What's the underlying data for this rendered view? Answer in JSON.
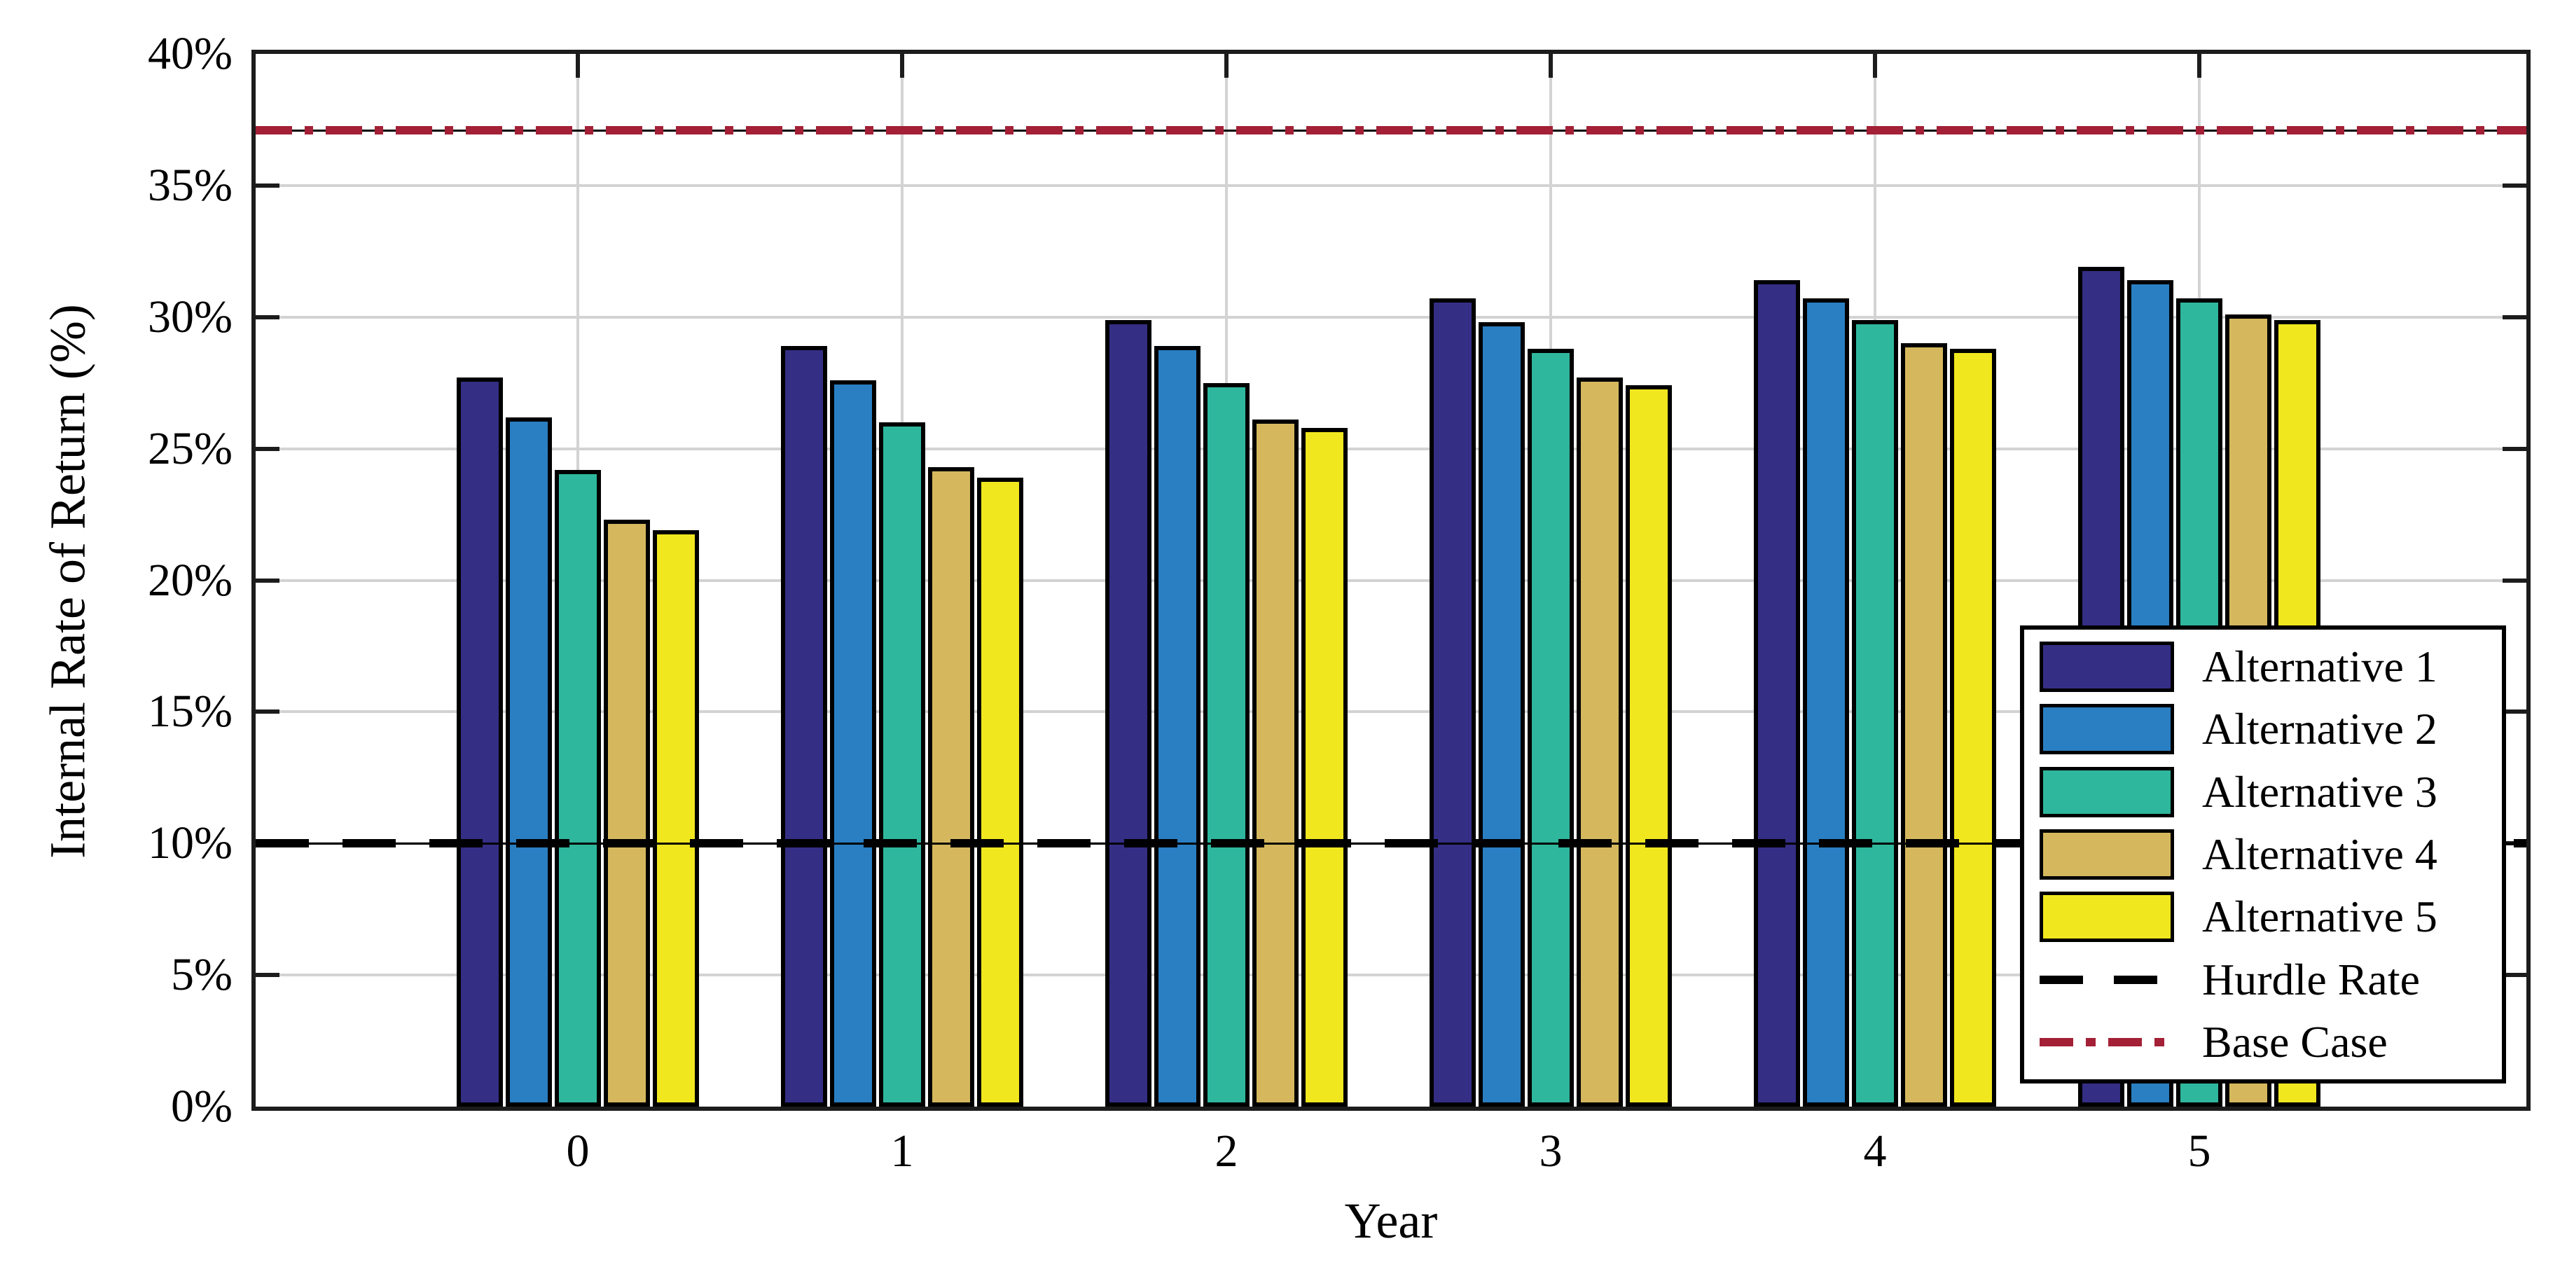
{
  "figure": {
    "background": "#ffffff"
  },
  "axes": {
    "y_title": "Internal Rate of Return (%)",
    "x_title": "Year",
    "y_ticks": [
      {
        "label": "40%",
        "value": 40
      },
      {
        "label": "35%",
        "value": 35
      },
      {
        "label": "30%",
        "value": 30
      },
      {
        "label": "25%",
        "value": 25
      },
      {
        "label": "20%",
        "value": 20
      },
      {
        "label": "15%",
        "value": 15
      },
      {
        "label": "10%",
        "value": 10
      },
      {
        "label": "5%",
        "value": 5
      },
      {
        "label": "0%",
        "value": 0
      }
    ],
    "x_ticks": [
      "0",
      "1",
      "2",
      "3",
      "4",
      "5"
    ],
    "grid_color": "#d3d3d3",
    "spine_color": "#1c1c1c"
  },
  "chart_data": {
    "type": "bar",
    "title": "",
    "xlabel": "Year",
    "ylabel": "Internal Rate of Return (%)",
    "categories": [
      0,
      1,
      2,
      3,
      4,
      5
    ],
    "ylim": [
      0,
      40
    ],
    "grid": true,
    "legend_position": "lower-right-inside",
    "series": [
      {
        "name": "Alternative 1",
        "color": "#352e85",
        "values": [
          27.7,
          28.9,
          29.9,
          30.7,
          31.4,
          31.9
        ]
      },
      {
        "name": "Alternative 2",
        "color": "#2a7fc2",
        "values": [
          26.2,
          27.6,
          28.9,
          29.8,
          30.7,
          31.4
        ]
      },
      {
        "name": "Alternative 3",
        "color": "#2fb79d",
        "values": [
          24.2,
          26.0,
          27.5,
          28.8,
          29.9,
          30.7
        ]
      },
      {
        "name": "Alternative 4",
        "color": "#d5b85e",
        "values": [
          22.3,
          24.3,
          26.1,
          27.7,
          29.0,
          30.1
        ]
      },
      {
        "name": "Alternative 5",
        "color": "#f1e71f",
        "values": [
          21.9,
          23.9,
          25.8,
          27.4,
          28.8,
          29.9
        ]
      }
    ],
    "reference_lines": [
      {
        "name": "Hurdle Rate",
        "value": 10,
        "style": "dashed",
        "color": "#000000"
      },
      {
        "name": "Base Case",
        "value": 37.1,
        "style": "dash-dot",
        "color": "#a32036"
      }
    ]
  },
  "legend": {
    "entries": [
      "Alternative 1",
      "Alternative 2",
      "Alternative 3",
      "Alternative 4",
      "Alternative 5",
      "Hurdle Rate",
      "Base Case"
    ]
  }
}
